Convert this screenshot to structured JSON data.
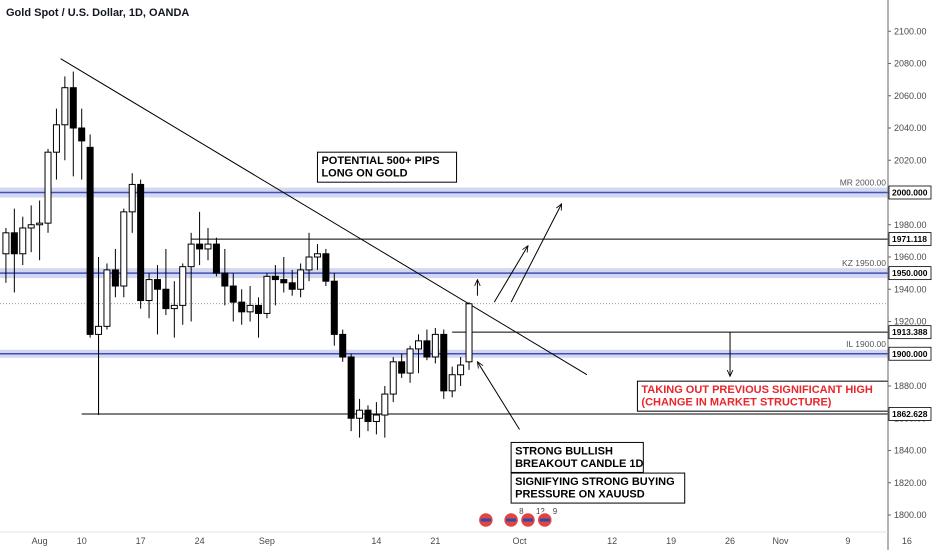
{
  "title": "Gold Spot / U.S. Dollar, 1D, OANDA",
  "colors": {
    "bull_fill": "#ffffff",
    "bear_fill": "#000000",
    "candle_stroke": "#000000",
    "zone_band": "#c5cbea",
    "zone_line": "#3d4fbf",
    "trendline": "#000000",
    "annotation_red": "#e8262b",
    "annotation_black": "#000000"
  },
  "chart_data": {
    "type": "candlestick",
    "symbol": "XAUUSD",
    "timeframe": "1D",
    "ylim": [
      1790,
      2100
    ],
    "y_ticks": [
      1800,
      1820,
      1840,
      1860,
      1880,
      1900,
      1920,
      1940,
      1960,
      1980,
      2000,
      2020,
      2040,
      2060,
      2080,
      2100
    ],
    "x_tick_labels": [
      {
        "label": "Aug",
        "day": 5
      },
      {
        "label": "10",
        "day": 10
      },
      {
        "label": "17",
        "day": 17
      },
      {
        "label": "24",
        "day": 24
      },
      {
        "label": "Sep",
        "day": 32
      },
      {
        "label": "14",
        "day": 45
      },
      {
        "label": "21",
        "day": 52
      },
      {
        "label": "Oct",
        "day": 62
      },
      {
        "label": "12",
        "day": 73
      },
      {
        "label": "19",
        "day": 80
      },
      {
        "label": "26",
        "day": 87
      },
      {
        "label": "Nov",
        "day": 93
      },
      {
        "label": "9",
        "day": 101
      },
      {
        "label": "16",
        "day": 108
      }
    ],
    "candles": [
      {
        "day": 1,
        "open": 1962,
        "high": 1978,
        "low": 1944,
        "close": 1975
      },
      {
        "day": 2,
        "open": 1975,
        "high": 1990,
        "low": 1938,
        "close": 1962
      },
      {
        "day": 3,
        "open": 1962,
        "high": 1985,
        "low": 1955,
        "close": 1978
      },
      {
        "day": 4,
        "open": 1978,
        "high": 1992,
        "low": 1963,
        "close": 1980
      },
      {
        "day": 5,
        "open": 1980,
        "high": 1995,
        "low": 1958,
        "close": 1981
      },
      {
        "day": 6,
        "open": 1981,
        "high": 2027,
        "low": 1975,
        "close": 2025
      },
      {
        "day": 7,
        "open": 2025,
        "high": 2052,
        "low": 2008,
        "close": 2042
      },
      {
        "day": 8,
        "open": 2042,
        "high": 2072,
        "low": 2020,
        "close": 2065
      },
      {
        "day": 9,
        "open": 2065,
        "high": 2075,
        "low": 2010,
        "close": 2040
      },
      {
        "day": 10,
        "open": 2040,
        "high": 2052,
        "low": 2008,
        "close": 2032
      },
      {
        "day": 11,
        "open": 2028,
        "high": 2036,
        "low": 1910,
        "close": 1912
      },
      {
        "day": 12,
        "open": 1912,
        "high": 1960,
        "low": 1862,
        "close": 1917
      },
      {
        "day": 13,
        "open": 1917,
        "high": 1956,
        "low": 1915,
        "close": 1952
      },
      {
        "day": 14,
        "open": 1952,
        "high": 1965,
        "low": 1935,
        "close": 1942
      },
      {
        "day": 15,
        "open": 1942,
        "high": 1990,
        "low": 1935,
        "close": 1988
      },
      {
        "day": 16,
        "open": 1988,
        "high": 2012,
        "low": 1975,
        "close": 2005
      },
      {
        "day": 17,
        "open": 2005,
        "high": 2008,
        "low": 1928,
        "close": 1933
      },
      {
        "day": 18,
        "open": 1933,
        "high": 1950,
        "low": 1922,
        "close": 1946
      },
      {
        "day": 19,
        "open": 1946,
        "high": 1955,
        "low": 1912,
        "close": 1940
      },
      {
        "day": 20,
        "open": 1940,
        "high": 1965,
        "low": 1924,
        "close": 1928
      },
      {
        "day": 21,
        "open": 1928,
        "high": 1945,
        "low": 1910,
        "close": 1930
      },
      {
        "day": 22,
        "open": 1930,
        "high": 1956,
        "low": 1918,
        "close": 1954
      },
      {
        "day": 23,
        "open": 1954,
        "high": 1975,
        "low": 1920,
        "close": 1968
      },
      {
        "day": 24,
        "open": 1968,
        "high": 1988,
        "low": 1955,
        "close": 1965
      },
      {
        "day": 25,
        "open": 1965,
        "high": 1978,
        "low": 1958,
        "close": 1968
      },
      {
        "day": 26,
        "open": 1968,
        "high": 1972,
        "low": 1948,
        "close": 1950
      },
      {
        "day": 27,
        "open": 1950,
        "high": 1965,
        "low": 1930,
        "close": 1942
      },
      {
        "day": 28,
        "open": 1942,
        "high": 1950,
        "low": 1920,
        "close": 1932
      },
      {
        "day": 29,
        "open": 1932,
        "high": 1940,
        "low": 1918,
        "close": 1926
      },
      {
        "day": 30,
        "open": 1926,
        "high": 1942,
        "low": 1920,
        "close": 1930
      },
      {
        "day": 31,
        "open": 1930,
        "high": 1935,
        "low": 1910,
        "close": 1925
      },
      {
        "day": 32,
        "open": 1925,
        "high": 1950,
        "low": 1922,
        "close": 1948
      },
      {
        "day": 33,
        "open": 1948,
        "high": 1955,
        "low": 1930,
        "close": 1946
      },
      {
        "day": 34,
        "open": 1946,
        "high": 1960,
        "low": 1938,
        "close": 1944
      },
      {
        "day": 35,
        "open": 1944,
        "high": 1952,
        "low": 1936,
        "close": 1940
      },
      {
        "day": 36,
        "open": 1940,
        "high": 1956,
        "low": 1935,
        "close": 1952
      },
      {
        "day": 37,
        "open": 1952,
        "high": 1975,
        "low": 1945,
        "close": 1960
      },
      {
        "day": 38,
        "open": 1960,
        "high": 1968,
        "low": 1952,
        "close": 1962
      },
      {
        "day": 39,
        "open": 1962,
        "high": 1965,
        "low": 1942,
        "close": 1945
      },
      {
        "day": 40,
        "open": 1945,
        "high": 1950,
        "low": 1905,
        "close": 1912
      },
      {
        "day": 41,
        "open": 1912,
        "high": 1915,
        "low": 1895,
        "close": 1898
      },
      {
        "day": 42,
        "open": 1898,
        "high": 1900,
        "low": 1852,
        "close": 1860
      },
      {
        "day": 43,
        "open": 1860,
        "high": 1872,
        "low": 1848,
        "close": 1865
      },
      {
        "day": 44,
        "open": 1865,
        "high": 1868,
        "low": 1852,
        "close": 1858
      },
      {
        "day": 45,
        "open": 1858,
        "high": 1870,
        "low": 1850,
        "close": 1862
      },
      {
        "day": 46,
        "open": 1862,
        "high": 1880,
        "low": 1848,
        "close": 1875
      },
      {
        "day": 47,
        "open": 1875,
        "high": 1898,
        "low": 1870,
        "close": 1895
      },
      {
        "day": 48,
        "open": 1895,
        "high": 1900,
        "low": 1885,
        "close": 1888
      },
      {
        "day": 49,
        "open": 1888,
        "high": 1905,
        "low": 1882,
        "close": 1903
      },
      {
        "day": 50,
        "open": 1903,
        "high": 1912,
        "low": 1888,
        "close": 1908
      },
      {
        "day": 51,
        "open": 1908,
        "high": 1915,
        "low": 1896,
        "close": 1898
      },
      {
        "day": 52,
        "open": 1898,
        "high": 1916,
        "low": 1894,
        "close": 1912
      },
      {
        "day": 53,
        "open": 1912,
        "high": 1915,
        "low": 1872,
        "close": 1877
      },
      {
        "day": 54,
        "open": 1877,
        "high": 1892,
        "low": 1873,
        "close": 1887
      },
      {
        "day": 55,
        "open": 1887,
        "high": 1898,
        "low": 1880,
        "close": 1893
      },
      {
        "day": 56,
        "open": 1895,
        "high": 1932,
        "low": 1890,
        "close": 1931
      }
    ],
    "zones": [
      {
        "price": 2000.0,
        "label": "MR 2000.00",
        "axis_label": "2000.000",
        "band": 5
      },
      {
        "price": 1950.0,
        "label": "KZ 1950.00",
        "axis_label": "1950.000",
        "band": 5
      },
      {
        "price": 1900.0,
        "label": "IL 1900.00",
        "axis_label": "1900.000",
        "band": 4
      }
    ],
    "levels": [
      {
        "price": 1971.118,
        "label": "1971.118",
        "from_day": 23
      },
      {
        "price": 1913.388,
        "label": "1913.388",
        "from_day": 54
      },
      {
        "price": 1862.628,
        "label": "1862.628",
        "from_day": 10
      }
    ],
    "current_price": 1931,
    "trendline": {
      "start": {
        "day": 7.5,
        "price": 2083
      },
      "end": {
        "day": 70,
        "price": 1887
      }
    },
    "structure_line": {
      "start": {
        "day": 59,
        "price": 1913.4
      },
      "end": {
        "day": 88,
        "price": 1913.4
      }
    },
    "down_arrow": {
      "day": 87,
      "from": 1913.4,
      "to": 1886
    },
    "up_arrows": [
      {
        "from": {
          "day": 57,
          "price": 1936
        },
        "to": {
          "day": 57,
          "price": 1946
        }
      },
      {
        "from": {
          "day": 59,
          "price": 1932
        },
        "to": {
          "day": 63,
          "price": 1967
        }
      },
      {
        "from": {
          "day": 61,
          "price": 1932
        },
        "to": {
          "day": 67,
          "price": 1993
        }
      }
    ],
    "pointer_arrows": [
      {
        "from": {
          "day": 62,
          "price": 1853
        },
        "to": {
          "day": 57,
          "price": 1895
        }
      }
    ],
    "annotations": [
      {
        "lines": [
          "POTENTIAL 500+ PIPS",
          "LONG ON GOLD"
        ],
        "color": "#000000",
        "at": {
          "day": 38,
          "price": 2025
        }
      },
      {
        "lines": [
          "TAKING OUT PREVIOUS SIGNIFICANT HIGH",
          "(CHANGE IN MARKET STRUCTURE)"
        ],
        "color": "#e8262b",
        "at": {
          "day": 76,
          "price": 1883
        }
      },
      {
        "lines": [
          "STRONG BULLISH",
          "BREAKOUT CANDLE 1D"
        ],
        "color": "#000000",
        "at": {
          "day": 61,
          "price": 1845
        }
      },
      {
        "lines": [
          "SIGNIFYING STRONG BUYING",
          "PRESSURE ON XAUUSD"
        ],
        "color": "#000000",
        "at": {
          "day": 61,
          "price": 1826
        }
      }
    ],
    "event_markers": [
      {
        "day": 58,
        "badge": ""
      },
      {
        "day": 61,
        "badge": "8"
      },
      {
        "day": 63,
        "badge": "12"
      },
      {
        "day": 65,
        "badge": "9"
      }
    ],
    "grid": false
  }
}
